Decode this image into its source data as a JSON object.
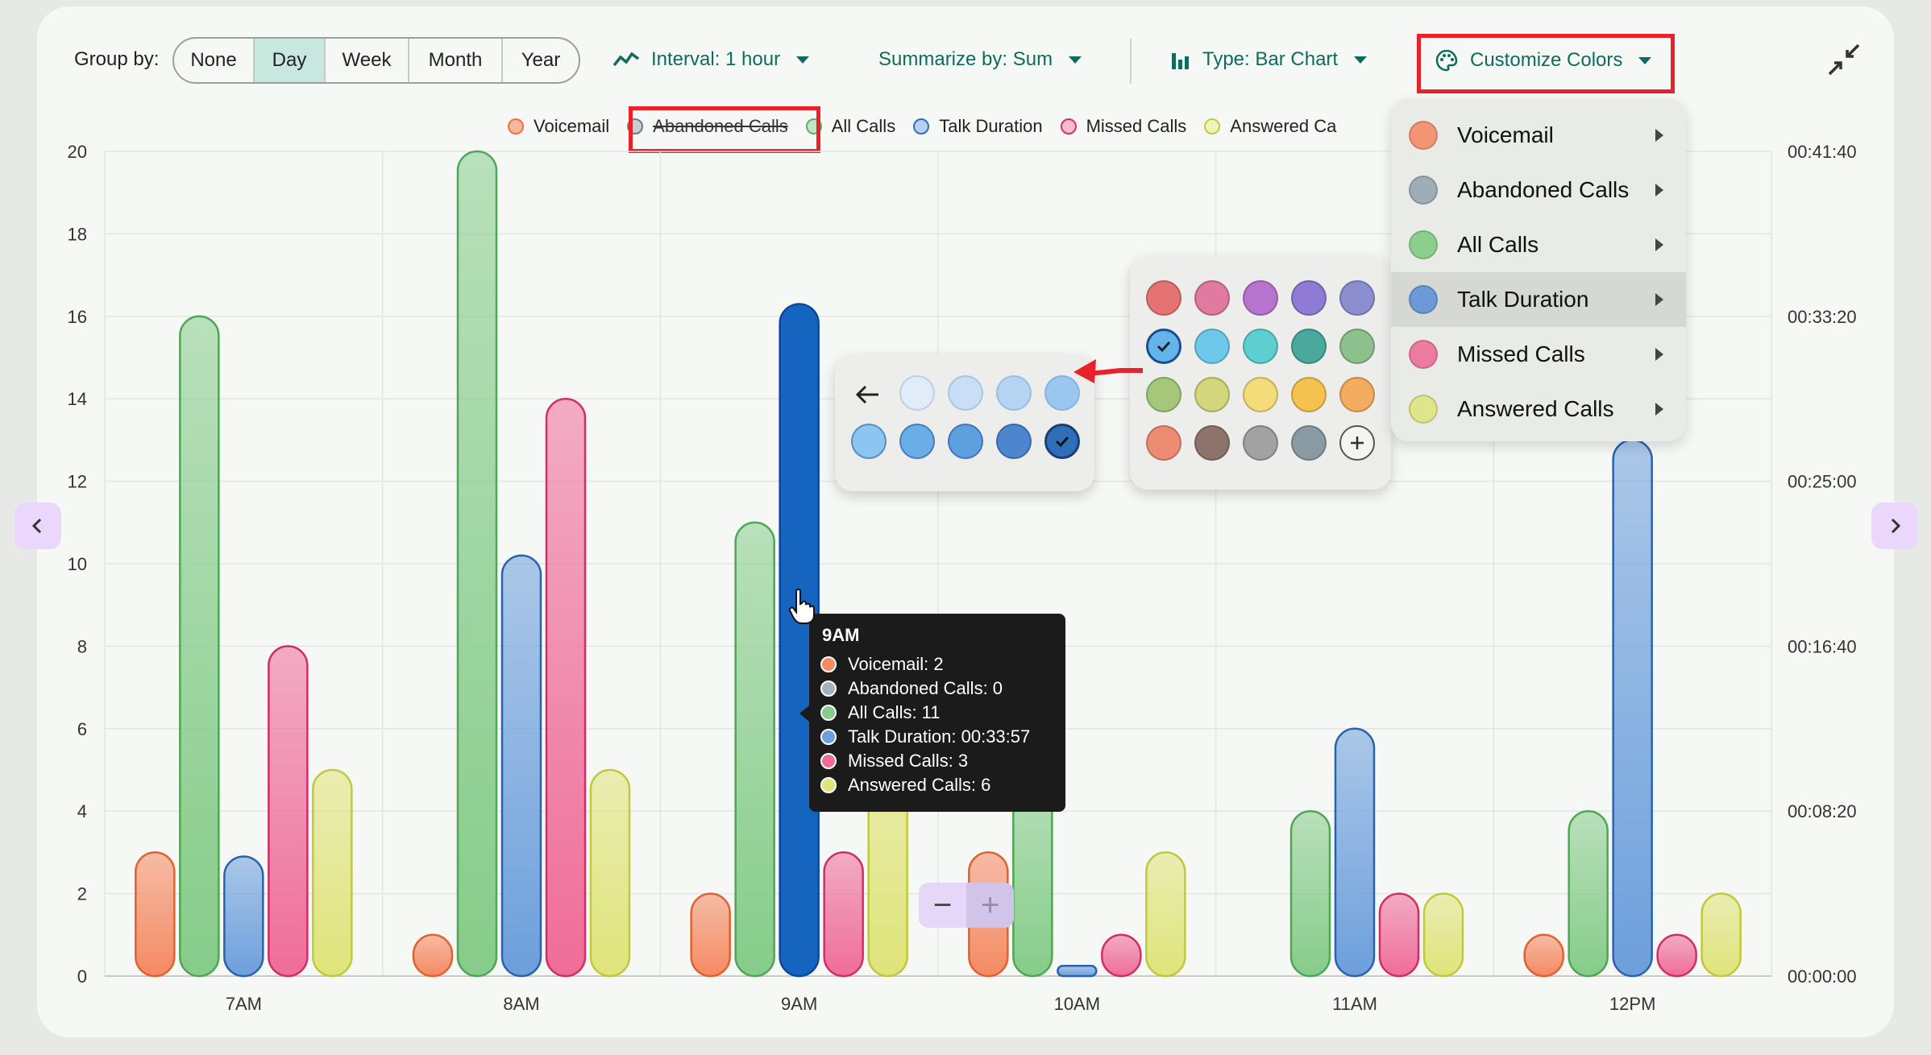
{
  "toolbar": {
    "group_by_label": "Group by:",
    "group_options": [
      "None",
      "Day",
      "Week",
      "Month",
      "Year"
    ],
    "group_selected": "Day",
    "interval_label": "Interval: 1 hour",
    "summarize_label": "Summarize by: Sum",
    "type_label": "Type: Bar Chart",
    "customize_label": "Customize Colors"
  },
  "legend": [
    {
      "label": "Voicemail",
      "color": "#f58a63",
      "hidden": false
    },
    {
      "label": "Abandoned Calls",
      "color": "#a6b3bd",
      "hidden": true
    },
    {
      "label": "All Calls",
      "color": "#86cc8a",
      "hidden": false
    },
    {
      "label": "Talk Duration",
      "color": "#6d9fdc",
      "hidden": false
    },
    {
      "label": "Missed Calls",
      "color": "#ef6d99",
      "hidden": false
    },
    {
      "label": "Answered Ca",
      "color": "#dfe47a",
      "hidden": false
    }
  ],
  "colors_menu": [
    {
      "label": "Voicemail",
      "color": "#f39573"
    },
    {
      "label": "Abandoned Calls",
      "color": "#9eadb7"
    },
    {
      "label": "All Calls",
      "color": "#8cce8e"
    },
    {
      "label": "Talk Duration",
      "color": "#6b9ad6",
      "selected": true
    },
    {
      "label": "Missed Calls",
      "color": "#ec7aa1"
    },
    {
      "label": "Answered Calls",
      "color": "#dfe58a"
    }
  ],
  "palette_colors": [
    "#e57373",
    "#e07aa0",
    "#b774cf",
    "#8f7bd3",
    "#8b8fd0",
    "#63b3ec",
    "#6ec8ea",
    "#5ecfd0",
    "#4aa89c",
    "#8cc08c",
    "#a5c77a",
    "#d3d67a",
    "#f4dc7a",
    "#f5c24f",
    "#f4ad60",
    "#ee8c73",
    "#8d746b",
    "#a2a2a2",
    "#8a9aa4",
    "#plus"
  ],
  "shade_colors_top": [
    "#e0ecf8",
    "#c9dff5",
    "#b5d4f3",
    "#9ac7f1"
  ],
  "shade_colors_bottom": [
    "#8dc5f1",
    "#6aaee8",
    "#5e9fe0",
    "#4d86cc",
    "#2f6eb8"
  ],
  "tooltip": {
    "title": "9AM",
    "rows": [
      {
        "text": "Voicemail: 2",
        "color": "#f58a63"
      },
      {
        "text": "Abandoned Calls: 0",
        "color": "#a6b3bd"
      },
      {
        "text": "All Calls: 11",
        "color": "#86cc8a"
      },
      {
        "text": "Talk Duration: 00:33:57",
        "color": "#6d9fdc"
      },
      {
        "text": "Missed Calls: 3",
        "color": "#ef6d99"
      },
      {
        "text": "Answered Calls: 6",
        "color": "#dfe47a"
      }
    ]
  },
  "zoom": {
    "minus": "−",
    "plus": "+"
  },
  "chart_data": {
    "type": "bar",
    "categories": [
      "7AM",
      "8AM",
      "9AM",
      "10AM",
      "11AM",
      "12PM"
    ],
    "ylim": [
      0,
      20
    ],
    "y_ticks": [
      0,
      2,
      4,
      6,
      8,
      10,
      12,
      14,
      16,
      18,
      20
    ],
    "y2_ticks": [
      "00:00:00",
      "00:08:20",
      "00:16:40",
      "00:25:00",
      "00:33:20",
      "00:41:40"
    ],
    "series": [
      {
        "name": "Voicemail",
        "color": "#f58a63",
        "values": [
          3,
          1,
          2,
          3,
          null,
          1
        ]
      },
      {
        "name": "All Calls",
        "color": "#86cc8a",
        "values": [
          16,
          20,
          11,
          5,
          4,
          4
        ]
      },
      {
        "name": "Talk Duration",
        "color": "#6d9fdc",
        "highlight": [
          false,
          false,
          true,
          false,
          false,
          false
        ],
        "values": [
          2.9,
          10.2,
          16.3,
          0.25,
          6,
          13
        ]
      },
      {
        "name": "Missed Calls",
        "color": "#ef6d99",
        "values": [
          8,
          14,
          3,
          1,
          2,
          1
        ]
      },
      {
        "name": "Answered Calls",
        "color": "#dfe47a",
        "values": [
          5,
          5,
          6,
          3,
          2,
          2
        ]
      }
    ]
  }
}
